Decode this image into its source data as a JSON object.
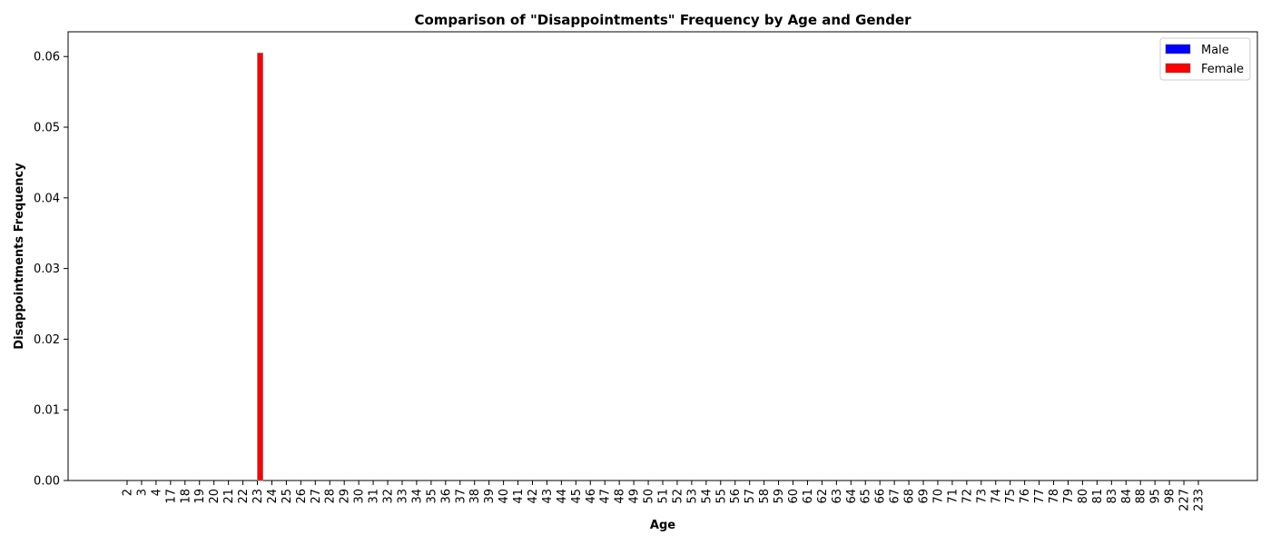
{
  "chart_data": {
    "type": "bar",
    "title": "Comparison of \"Disappointments\" Frequency by Age and Gender",
    "xlabel": "Age",
    "ylabel": "Disappointments Frequency",
    "categories": [
      "2",
      "3",
      "4",
      "17",
      "18",
      "19",
      "20",
      "21",
      "22",
      "23",
      "24",
      "25",
      "26",
      "27",
      "28",
      "29",
      "30",
      "31",
      "32",
      "33",
      "34",
      "35",
      "36",
      "37",
      "38",
      "39",
      "40",
      "41",
      "42",
      "43",
      "44",
      "45",
      "46",
      "47",
      "48",
      "49",
      "50",
      "51",
      "52",
      "53",
      "54",
      "55",
      "56",
      "57",
      "58",
      "59",
      "60",
      "61",
      "62",
      "63",
      "64",
      "65",
      "66",
      "67",
      "68",
      "69",
      "70",
      "71",
      "72",
      "73",
      "74",
      "75",
      "76",
      "77",
      "78",
      "79",
      "80",
      "81",
      "83",
      "84",
      "88",
      "95",
      "98",
      "227",
      "233"
    ],
    "series": [
      {
        "name": "Male",
        "color": "#0000ff",
        "values": {}
      },
      {
        "name": "Female",
        "color": "#ff0000",
        "values": {
          "23": 0.0605
        }
      }
    ],
    "ylim": [
      0,
      0.0635
    ],
    "yticks": [
      0.0,
      0.01,
      0.02,
      0.03,
      0.04,
      0.05,
      0.06
    ],
    "ytick_labels": [
      "0.00",
      "0.01",
      "0.02",
      "0.03",
      "0.04",
      "0.05",
      "0.06"
    ],
    "grid": false,
    "legend_position": "top-right"
  }
}
